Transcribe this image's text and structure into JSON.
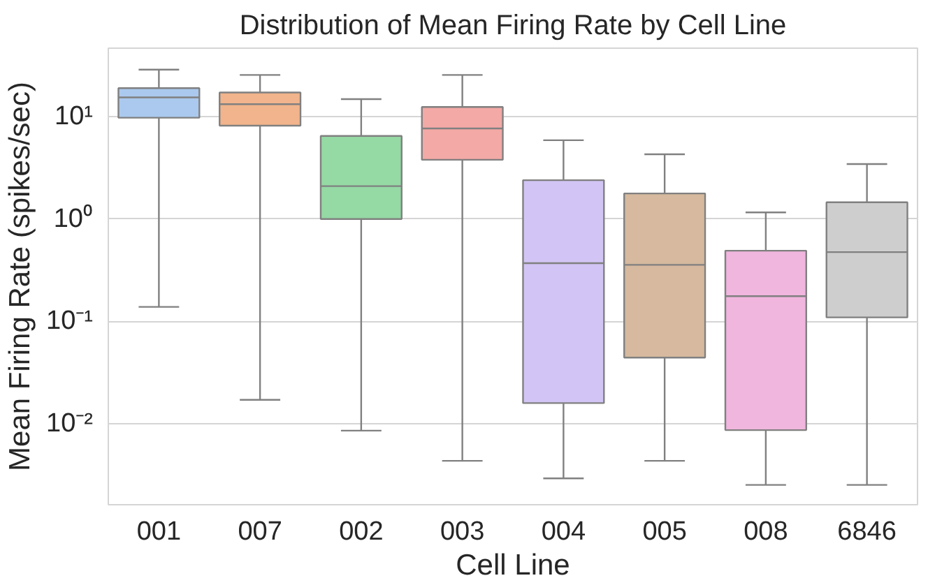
{
  "chart_data": {
    "type": "box",
    "title": "Distribution of Mean Firing Rate by Cell Line",
    "xlabel": "Cell Line",
    "ylabel": "Mean Firing Rate (spikes/sec)",
    "categories": [
      "001",
      "007",
      "002",
      "003",
      "004",
      "005",
      "008",
      "6846"
    ],
    "colors": [
      "#abc9ee",
      "#f2b48c",
      "#95d9a5",
      "#f3a9a6",
      "#d2c5f5",
      "#d6b99e",
      "#f0b6de",
      "#cecece"
    ],
    "boxes": [
      {
        "low": 0.138,
        "q1": 9.8,
        "median": 15.5,
        "q3": 19.1,
        "high": 29
      },
      {
        "low": 0.017,
        "q1": 8.2,
        "median": 13.3,
        "q3": 17.3,
        "high": 25.7
      },
      {
        "low": 0.0085,
        "q1": 1.0,
        "median": 2.1,
        "q3": 6.5,
        "high": 14.9
      },
      {
        "low": 0.0043,
        "q1": 3.8,
        "median": 7.7,
        "q3": 12.5,
        "high": 25.7
      },
      {
        "low": 0.0029,
        "q1": 0.0158,
        "median": 0.37,
        "q3": 2.4,
        "high": 5.9
      },
      {
        "low": 0.0043,
        "q1": 0.044,
        "median": 0.356,
        "q3": 1.78,
        "high": 4.3
      },
      {
        "low": 0.0025,
        "q1": 0.0086,
        "median": 0.176,
        "q3": 0.49,
        "high": 1.16
      },
      {
        "low": 0.0025,
        "q1": 0.109,
        "median": 0.475,
        "q3": 1.46,
        "high": 3.45
      }
    ],
    "log": true,
    "ylim": [
      0.0016,
      47
    ],
    "yticks": [
      {
        "value": 0.01,
        "label": "10⁻²"
      },
      {
        "value": 0.1,
        "label": "10⁻¹"
      },
      {
        "value": 1,
        "label": "10⁰"
      },
      {
        "value": 10,
        "label": "10¹"
      }
    ],
    "grid": "y"
  }
}
